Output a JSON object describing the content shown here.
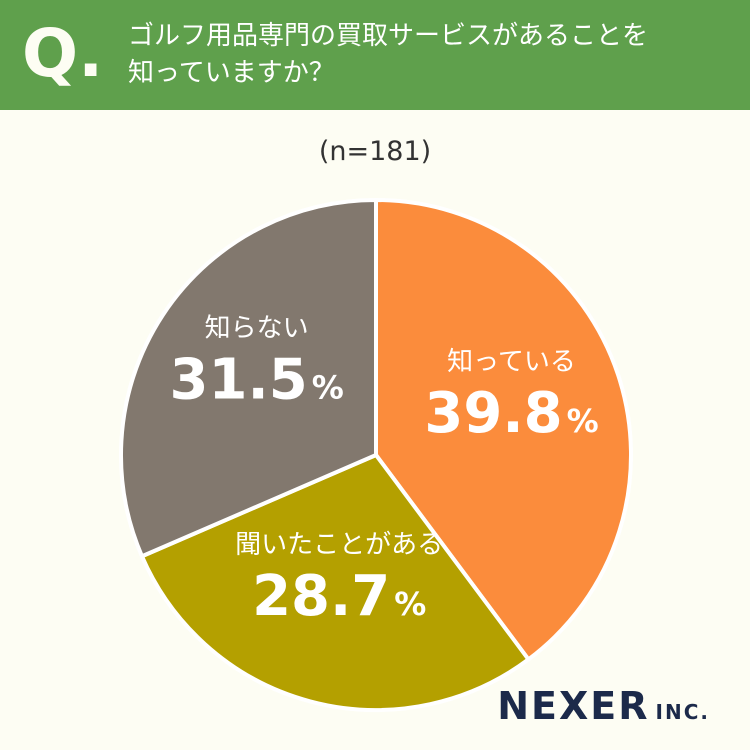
{
  "header": {
    "q_mark": "Q.",
    "question": "ゴルフ用品専門の買取サービスがあることを\n知っていますか？"
  },
  "sample_size": "(n=181)",
  "chart_data": {
    "type": "pie",
    "categories": [
      "知っている",
      "聞いたことがある",
      "知らない"
    ],
    "values": [
      39.8,
      28.7,
      31.5
    ],
    "unit": "%",
    "colors": [
      "#fb8c3c",
      "#b4a000",
      "#82786e"
    ],
    "start_angle": "12 o'clock",
    "direction": "clockwise"
  },
  "logo": {
    "main": "NEXER",
    "sub": "INC."
  }
}
